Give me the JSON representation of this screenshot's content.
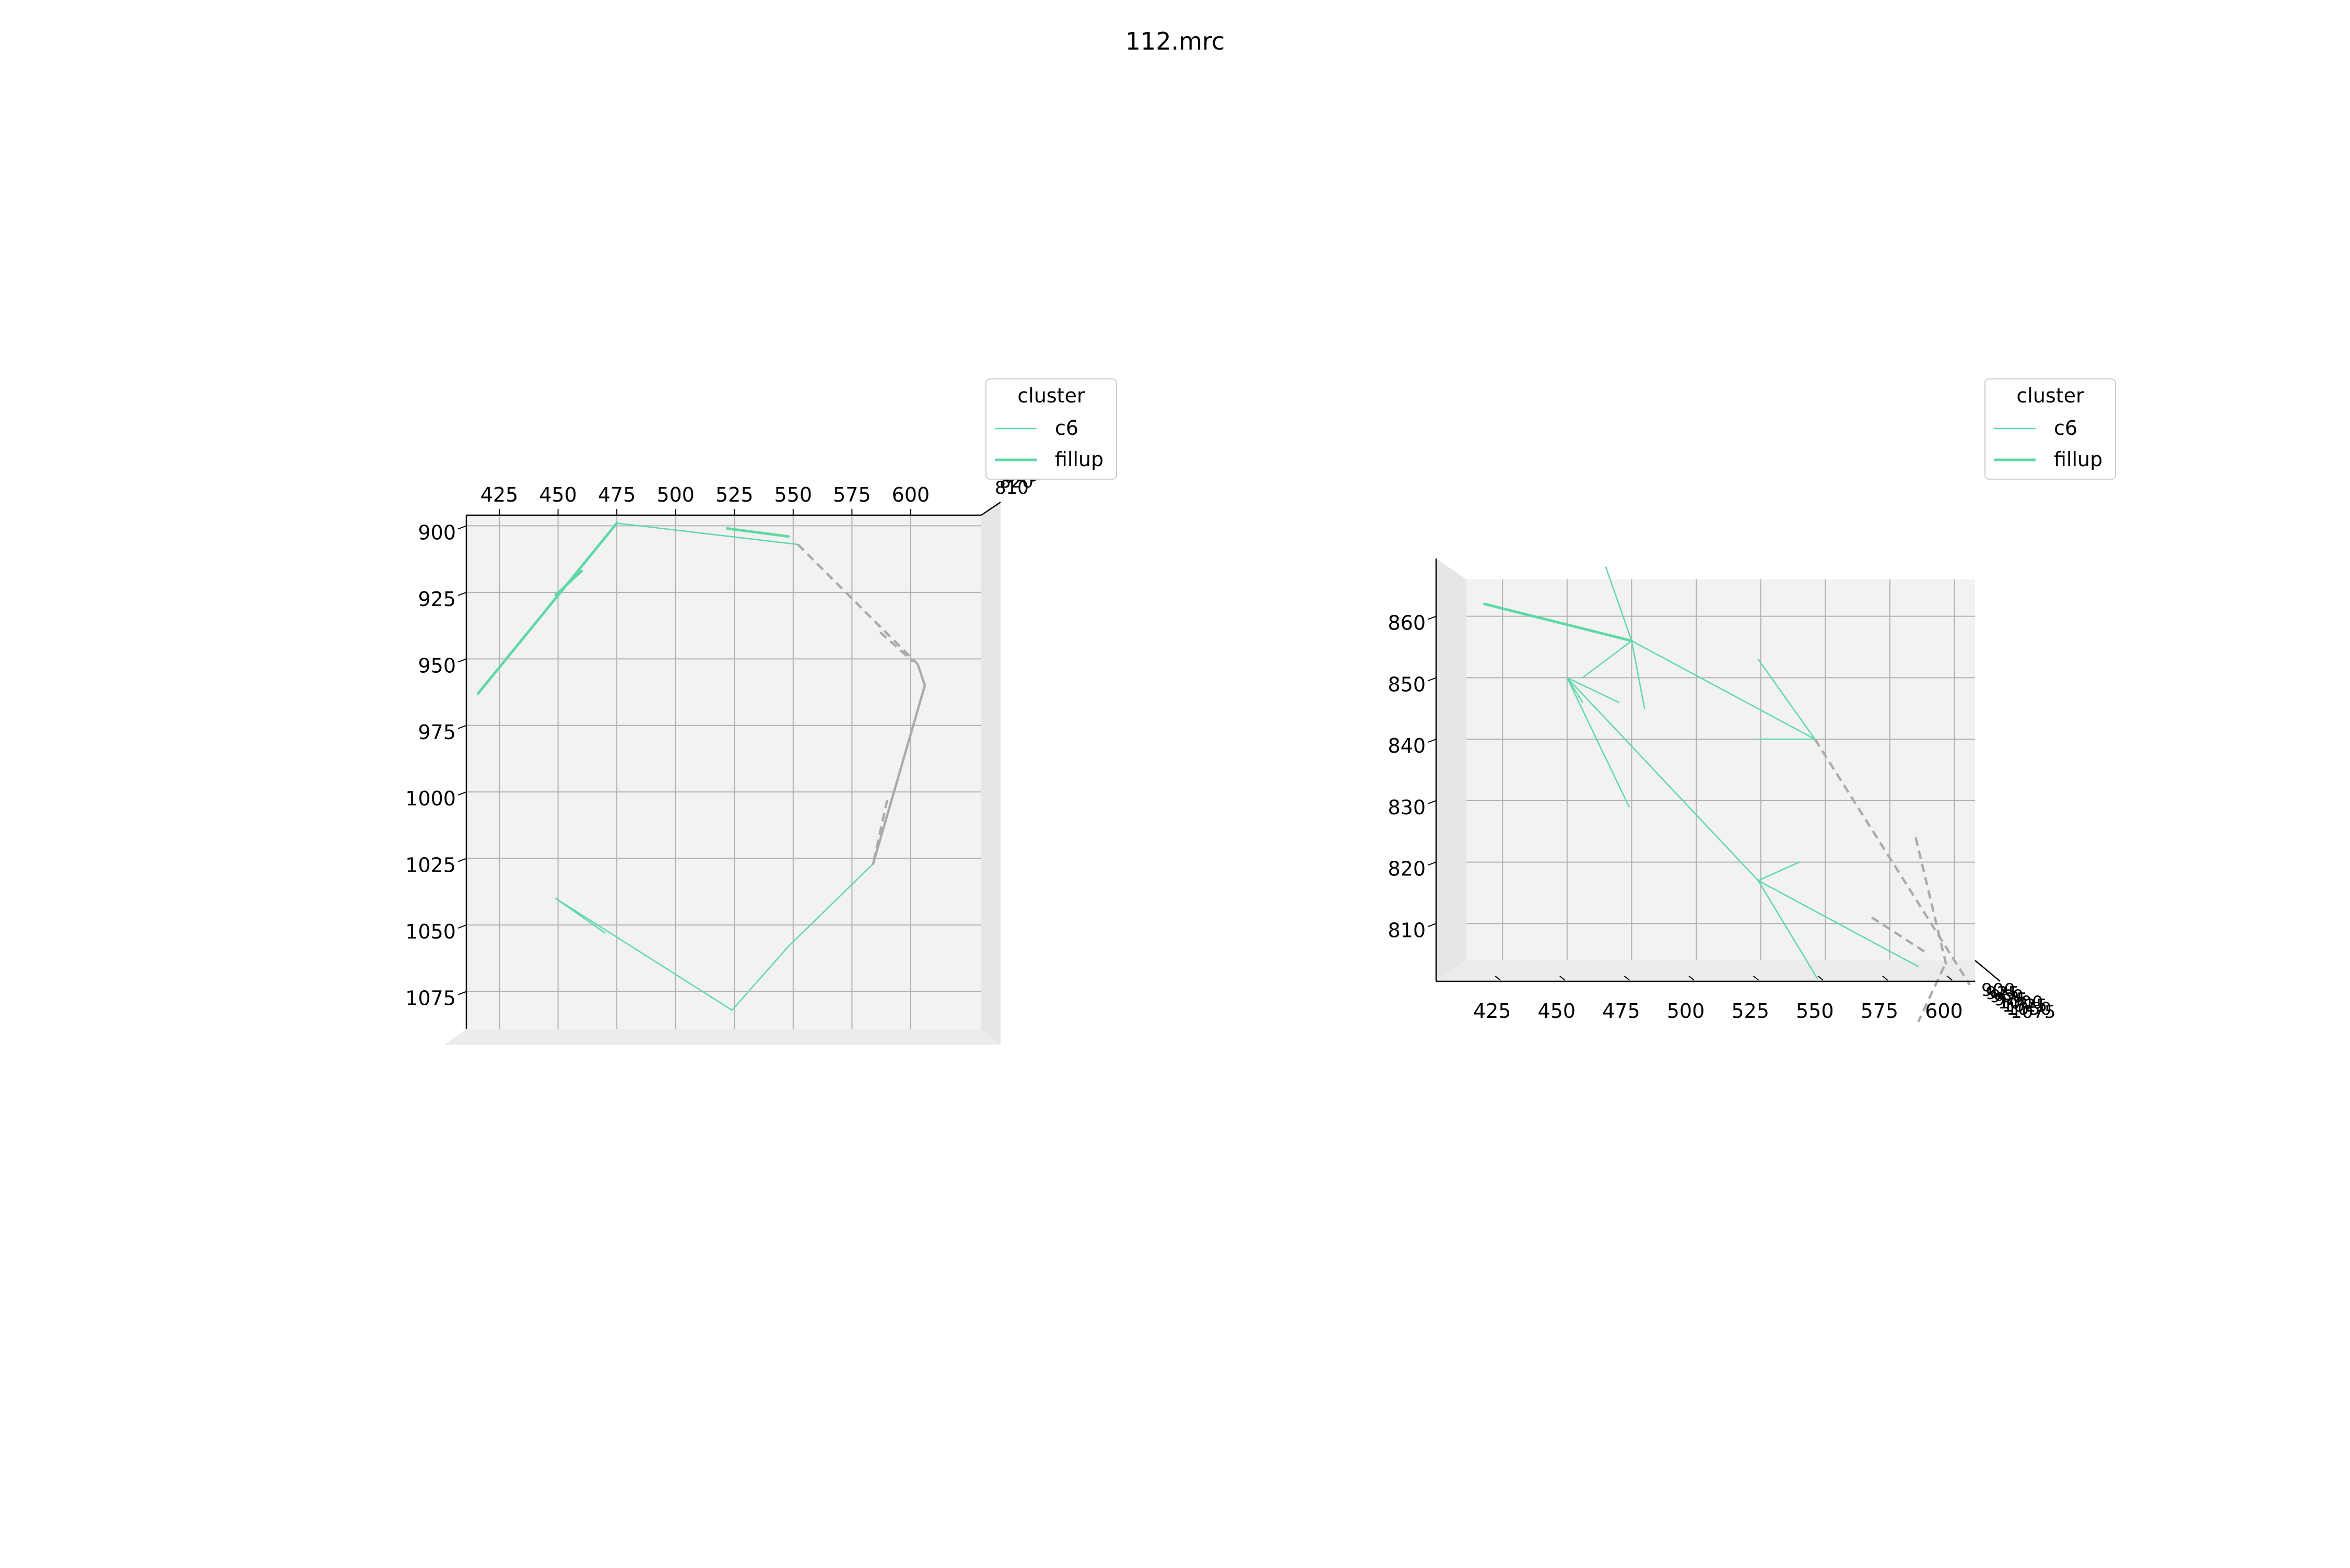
{
  "figure": {
    "title": "112.mrc"
  },
  "legend_common": {
    "title": "cluster",
    "entries": [
      {
        "label": "c6",
        "color": "#5fd8a6",
        "style": "thin"
      },
      {
        "label": "fillup",
        "color": "#5fd8a6",
        "style": "thick"
      }
    ]
  },
  "chart_data": [
    {
      "type": "line",
      "projection": "3d",
      "view": "top (x horizontal, y vertical inverted)",
      "title": "",
      "legend": {
        "title": "cluster",
        "entries": [
          "c6",
          "fillup"
        ],
        "placement": "top-right"
      },
      "x_ticks": [
        425,
        450,
        475,
        500,
        525,
        550,
        575,
        600
      ],
      "y_ticks": [
        900,
        925,
        950,
        975,
        1000,
        1025,
        1050,
        1075
      ],
      "xlim": [
        411,
        630
      ],
      "ylim": [
        896,
        1089
      ],
      "grid": true,
      "series": [
        {
          "name": "fillup",
          "color": "#5fd8a6",
          "style": "thick",
          "segments": [
            [
              [
                416,
                963
              ],
              [
                475,
                899
              ]
            ],
            [
              [
                449,
                926
              ],
              [
                460,
                917
              ]
            ],
            [
              [
                548,
                904
              ],
              [
                522,
                901
              ]
            ]
          ]
        },
        {
          "name": "c6",
          "color": "#5fd8a6",
          "style": "thin",
          "segments": [
            [
              [
                475,
                899
              ],
              [
                552,
                907
              ]
            ],
            [
              [
                584,
                1027
              ],
              [
                548,
                1058
              ]
            ],
            [
              [
                548,
                1058
              ],
              [
                524,
                1082
              ]
            ],
            [
              [
                524,
                1082
              ],
              [
                449,
                1040
              ]
            ],
            [
              [
                449,
                1040
              ],
              [
                470,
                1053
              ]
            ]
          ]
        },
        {
          "color": "#aaaaaa",
          "style": "dashed",
          "segments": [
            [
              [
                552,
                907
              ],
              [
                603,
                952
              ]
            ],
            [
              [
                587,
                940
              ],
              [
                601,
                951
              ]
            ],
            [
              [
                590,
                1003
              ],
              [
                584,
                1027
              ]
            ]
          ]
        },
        {
          "color": "#aaaaaa",
          "style": "solid",
          "segments": [
            [
              [
                603,
                952
              ],
              [
                606,
                960
              ]
            ],
            [
              [
                606,
                960
              ],
              [
                584,
                1027
              ]
            ]
          ]
        }
      ]
    },
    {
      "type": "line",
      "projection": "3d",
      "view": "front (x horizontal, z vertical)",
      "title": "",
      "legend": {
        "title": "cluster",
        "entries": [
          "c6",
          "fillup"
        ],
        "placement": "top-right"
      },
      "x_ticks": [
        425,
        450,
        475,
        500,
        525,
        550,
        575,
        600
      ],
      "y_ticks": [
        810,
        820,
        830,
        840,
        850,
        860
      ],
      "xlim": [
        411,
        608
      ],
      "ylim": [
        804,
        866
      ],
      "grid": true,
      "series": [
        {
          "name": "fillup",
          "color": "#5fd8a6",
          "style": "thick",
          "segments": [
            [
              [
                418,
                862
              ],
              [
                475,
                856
              ]
            ]
          ]
        },
        {
          "name": "c6",
          "color": "#5fd8a6",
          "style": "thin",
          "segments": [
            [
              [
                465,
                868
              ],
              [
                475,
                856
              ]
            ],
            [
              [
                475,
                856
              ],
              [
                546,
                840
              ]
            ],
            [
              [
                475,
                856
              ],
              [
                456,
                850
              ]
            ],
            [
              [
                475,
                856
              ],
              [
                480,
                845
              ]
            ],
            [
              [
                450,
                850
              ],
              [
                474,
                829
              ]
            ],
            [
              [
                450,
                850
              ],
              [
                470,
                846
              ]
            ],
            [
              [
                450,
                850
              ],
              [
                524,
                817
              ]
            ],
            [
              [
                524,
                817
              ],
              [
                547,
                801
              ]
            ],
            [
              [
                524,
                817
              ],
              [
                540,
                820
              ]
            ],
            [
              [
                524,
                817
              ],
              [
                586,
                803
              ]
            ],
            [
              [
                450,
                850
              ],
              [
                456,
                846
              ]
            ],
            [
              [
                524,
                840
              ],
              [
                546,
                840
              ]
            ],
            [
              [
                524,
                853
              ],
              [
                546,
                840
              ]
            ]
          ]
        },
        {
          "color": "#aaaaaa",
          "style": "dashed",
          "segments": [
            [
              [
                546,
                840
              ],
              [
                606,
                800
              ]
            ],
            [
              [
                585,
                824
              ],
              [
                597,
                803
              ]
            ],
            [
              [
                596,
                803
              ],
              [
                586,
                794
              ]
            ],
            [
              [
                568,
                811
              ],
              [
                590,
                805
              ]
            ]
          ]
        }
      ]
    }
  ]
}
